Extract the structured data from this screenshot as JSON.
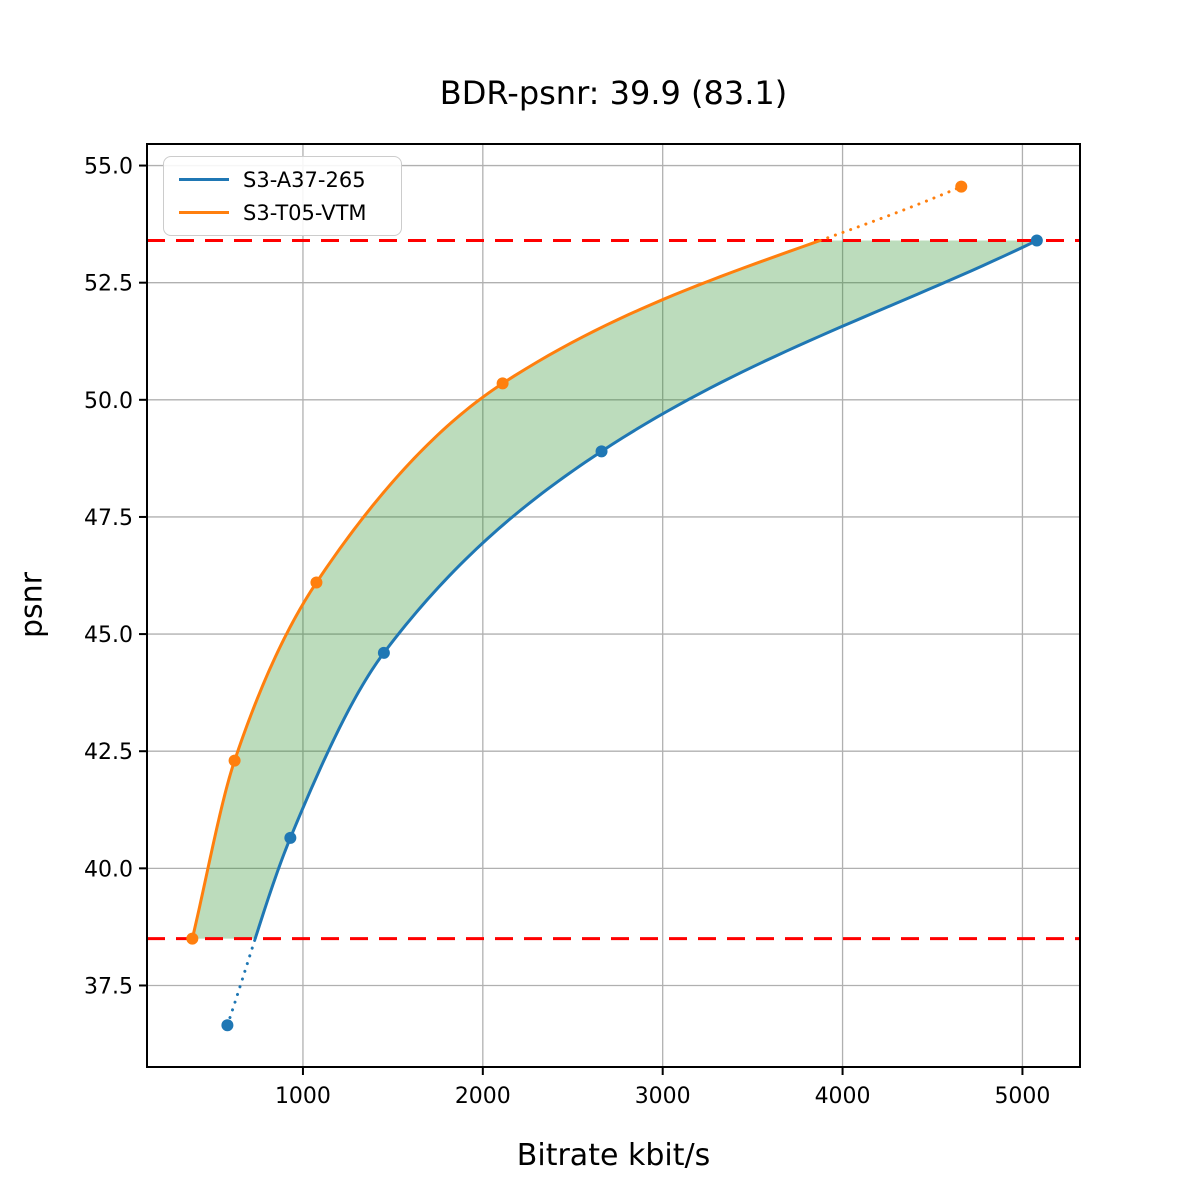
{
  "chart_data": {
    "type": "line",
    "title": "BDR-psnr: 39.9 (83.1)",
    "xlabel": "Bitrate kbit/s",
    "ylabel": "psnr",
    "xlim": [
      133,
      5320
    ],
    "ylim": [
      35.76,
      55.46
    ],
    "x_ticks": [
      1000,
      2000,
      3000,
      4000,
      5000
    ],
    "y_ticks": [
      37.5,
      40.0,
      42.5,
      45.0,
      47.5,
      50.0,
      52.5,
      55.0
    ],
    "grid": true,
    "legend_position": "upper left",
    "series": [
      {
        "name": "S3-A37-265",
        "color": "#1f77b4",
        "points": [
          [
            580,
            36.65
          ],
          [
            930,
            40.65
          ],
          [
            1450,
            44.6
          ],
          [
            2660,
            48.9
          ],
          [
            5080,
            53.4
          ]
        ]
      },
      {
        "name": "S3-T05-VTM",
        "color": "#ff7f0e",
        "points": [
          [
            385,
            38.5
          ],
          [
            620,
            42.3
          ],
          [
            1075,
            46.1
          ],
          [
            2110,
            50.35
          ],
          [
            4660,
            54.55
          ]
        ]
      }
    ],
    "ref_lines": {
      "color": "#ff0000",
      "style": "dashed",
      "lower_psnr": 38.5,
      "upper_psnr": 53.4
    },
    "shaded_region": {
      "color": "#228b22",
      "opacity": 0.3,
      "description": "area between curves within psnr range 38.5 to 53.4"
    },
    "colors": {
      "grid": "#b0b0b0",
      "spine": "#000000",
      "tick_text": "#000000"
    }
  }
}
